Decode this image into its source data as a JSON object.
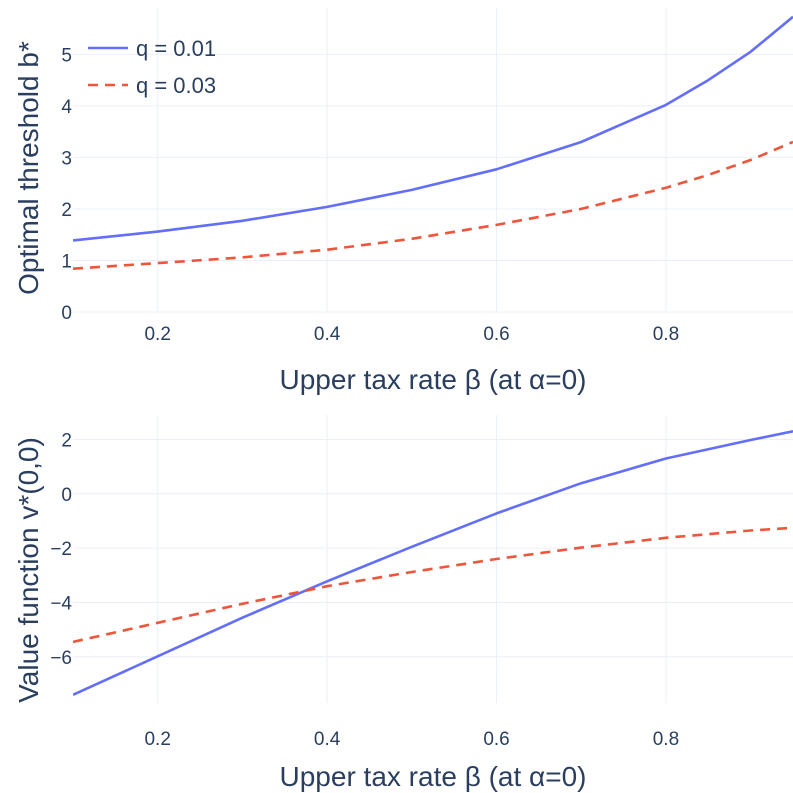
{
  "chart_data": [
    {
      "type": "line",
      "xlabel": "Upper tax rate β (at α=0)",
      "ylabel": "Optimal threshold b*",
      "xlim": [
        0.1,
        0.95
      ],
      "ylim": [
        0,
        5.9
      ],
      "xticks": [
        0.2,
        0.4,
        0.6,
        0.8
      ],
      "xtick_labels": [
        "0.2",
        "0.4",
        "0.6",
        "0.8"
      ],
      "yticks": [
        0,
        1,
        2,
        3,
        4,
        5
      ],
      "ytick_labels": [
        "0",
        "1",
        "2",
        "3",
        "4",
        "5"
      ],
      "legend": "top-left",
      "series": [
        {
          "name": "q = 0.01",
          "color": "#636efa",
          "dash": "solid",
          "x": [
            0.1,
            0.2,
            0.3,
            0.4,
            0.5,
            0.6,
            0.7,
            0.8,
            0.85,
            0.9,
            0.95
          ],
          "y": [
            1.39,
            1.56,
            1.77,
            2.04,
            2.37,
            2.77,
            3.3,
            4.02,
            4.5,
            5.05,
            5.73
          ]
        },
        {
          "name": "q = 0.03",
          "color": "#ef553b",
          "dash": "dash",
          "x": [
            0.1,
            0.2,
            0.3,
            0.4,
            0.5,
            0.6,
            0.7,
            0.8,
            0.85,
            0.9,
            0.95
          ],
          "y": [
            0.84,
            0.95,
            1.06,
            1.21,
            1.42,
            1.69,
            2.0,
            2.41,
            2.66,
            2.95,
            3.3
          ]
        }
      ]
    },
    {
      "type": "line",
      "xlabel": "Upper tax rate β (at α=0)",
      "ylabel": "Value function v*(0,0)",
      "xlim": [
        0.1,
        0.95
      ],
      "ylim": [
        -7.7,
        2.9
      ],
      "xticks": [
        0.2,
        0.4,
        0.6,
        0.8
      ],
      "xtick_labels": [
        "0.2",
        "0.4",
        "0.6",
        "0.8"
      ],
      "yticks": [
        -6,
        -4,
        -2,
        0,
        2
      ],
      "ytick_labels": [
        "−6",
        "−4",
        "−2",
        "0",
        "2"
      ],
      "legend": "none",
      "series": [
        {
          "name": "q = 0.01",
          "color": "#636efa",
          "dash": "solid",
          "x": [
            0.1,
            0.2,
            0.3,
            0.4,
            0.5,
            0.6,
            0.7,
            0.8,
            0.9,
            0.95
          ],
          "y": [
            -7.4,
            -5.98,
            -4.56,
            -3.22,
            -1.95,
            -0.72,
            0.39,
            1.3,
            1.98,
            2.3
          ]
        },
        {
          "name": "q = 0.03",
          "color": "#ef553b",
          "dash": "dash",
          "x": [
            0.1,
            0.2,
            0.3,
            0.4,
            0.5,
            0.6,
            0.7,
            0.8,
            0.9,
            0.95
          ],
          "y": [
            -5.45,
            -4.75,
            -4.05,
            -3.4,
            -2.88,
            -2.4,
            -1.98,
            -1.62,
            -1.35,
            -1.25
          ]
        }
      ]
    }
  ]
}
